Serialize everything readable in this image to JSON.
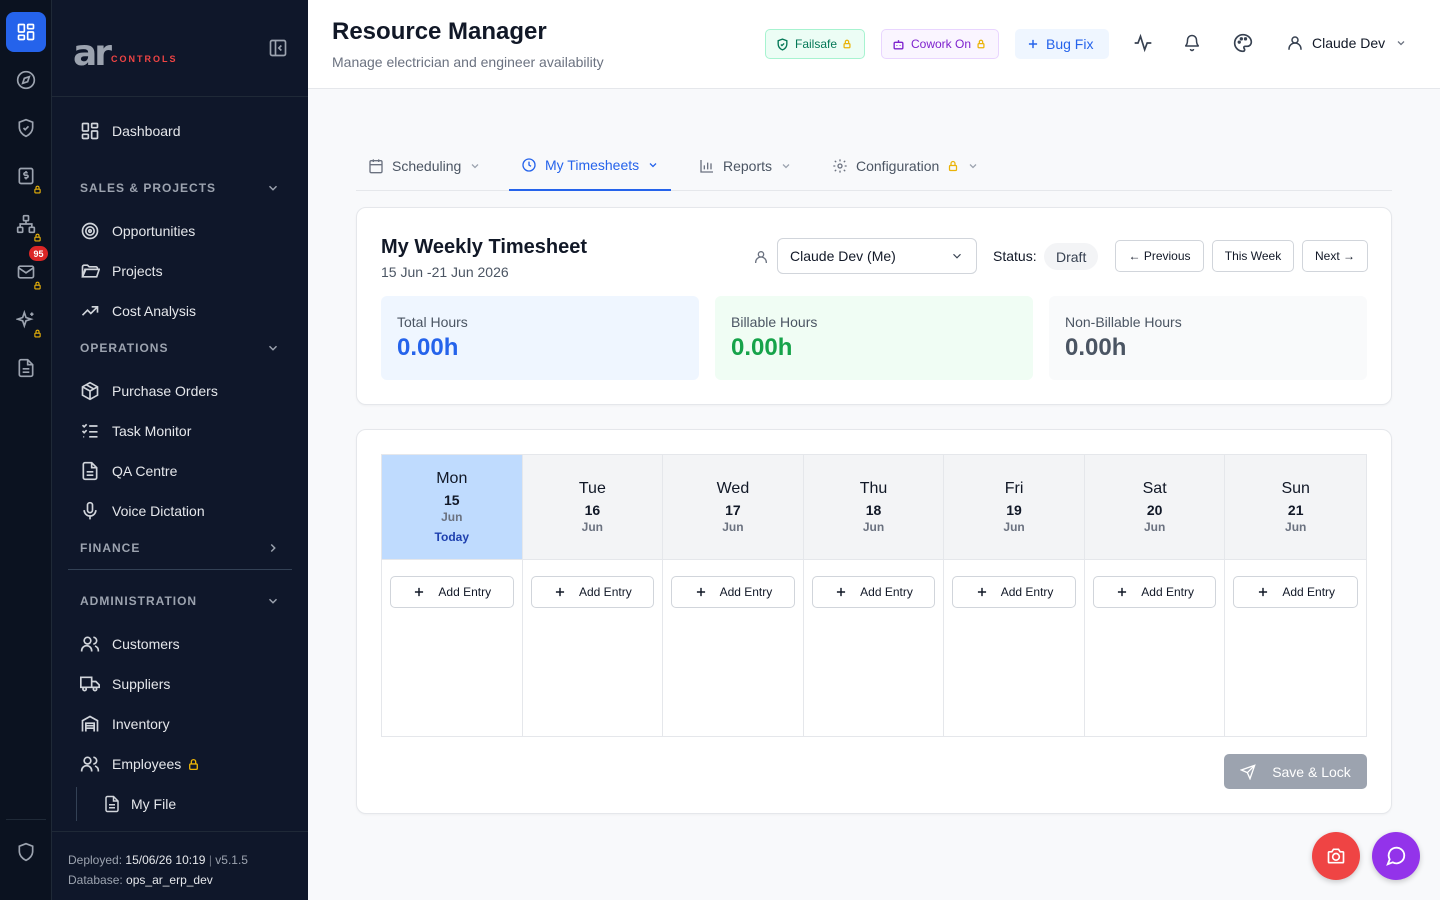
{
  "sidebar": {
    "logo_main": "ar",
    "logo_sub": "CONTROLS",
    "dashboard": "Dashboard",
    "sales_section": "SALES & PROJECTS",
    "opportunities": "Opportunities",
    "projects": "Projects",
    "cost_analysis": "Cost Analysis",
    "operations_section": "OPERATIONS",
    "purchase_orders": "Purchase Orders",
    "task_monitor": "Task Monitor",
    "qa_centre": "QA Centre",
    "voice_dictation": "Voice Dictation",
    "finance_section": "FINANCE",
    "admin_section": "ADMINISTRATION",
    "customers": "Customers",
    "suppliers": "Suppliers",
    "inventory": "Inventory",
    "employees": "Employees",
    "my_file": "My File",
    "deployed_label": "Deployed:",
    "deployed_value": "15/06/26 10:19",
    "version": "v5.1.5",
    "database_label": "Database:",
    "database_value": "ops_ar_erp_dev"
  },
  "rail": {
    "mail_badge": "95"
  },
  "header": {
    "title": "Resource Manager",
    "subtitle": "Manage electrician and engineer availability",
    "failsafe": "Failsafe",
    "cowork": "Cowork On",
    "bugfix": "Bug Fix",
    "user": "Claude Dev"
  },
  "tabs": {
    "scheduling": "Scheduling",
    "timesheets": "My Timesheets",
    "reports": "Reports",
    "configuration": "Configuration"
  },
  "timesheet": {
    "title": "My Weekly Timesheet",
    "range": "15 Jun -21 Jun 2026",
    "employee": "Claude Dev (Me)",
    "status_label": "Status:",
    "status": "Draft",
    "previous": "← Previous",
    "this_week": "This Week",
    "next": "Next →",
    "total_label": "Total Hours",
    "total_value": "0.00h",
    "billable_label": "Billable Hours",
    "billable_value": "0.00h",
    "nonbillable_label": "Non-Billable Hours",
    "nonbillable_value": "0.00h"
  },
  "week": {
    "days": [
      {
        "name": "Mon",
        "num": "15",
        "month": "Jun",
        "today": "Today"
      },
      {
        "name": "Tue",
        "num": "16",
        "month": "Jun"
      },
      {
        "name": "Wed",
        "num": "17",
        "month": "Jun"
      },
      {
        "name": "Thu",
        "num": "18",
        "month": "Jun"
      },
      {
        "name": "Fri",
        "num": "19",
        "month": "Jun"
      },
      {
        "name": "Sat",
        "num": "20",
        "month": "Jun"
      },
      {
        "name": "Sun",
        "num": "21",
        "month": "Jun"
      }
    ],
    "add_entry": "Add Entry",
    "save_lock": "Save & Lock"
  },
  "colors": {
    "accent": "#2563eb",
    "today_bg": "#bfdbfe",
    "billable": "#16a34a",
    "camera_fab": "#ef4444",
    "chat_fab": "#9333ea"
  }
}
